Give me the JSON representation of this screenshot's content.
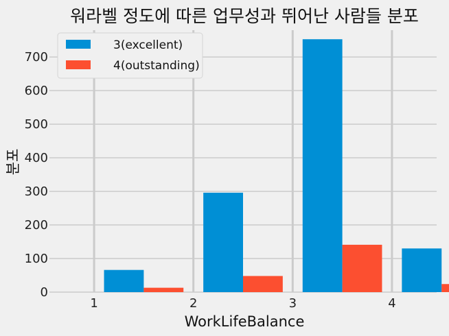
{
  "chart_data": {
    "type": "bar",
    "title": "워라벨 정도에 따른 업무성과 뛰어난 사람들 분포",
    "xlabel": "WorkLifeBalance",
    "ylabel": "분포",
    "x_ticks": [
      "1",
      "2",
      "3",
      "4"
    ],
    "x_range": [
      1,
      4
    ],
    "ylim": [
      0,
      780
    ],
    "y_ticks": [
      "0",
      "100",
      "200",
      "300",
      "400",
      "500",
      "600",
      "700"
    ],
    "grid": true,
    "legend_position": "top-left",
    "bins": [
      {
        "start": 1,
        "end": 2
      },
      {
        "start": 2,
        "end": 3
      },
      {
        "start": 3,
        "end": 4
      },
      {
        "start": 4,
        "end": 5
      }
    ],
    "series": [
      {
        "name": "3(excellent)",
        "color": "#008fd5",
        "values": [
          66,
          296,
          753,
          130
        ]
      },
      {
        "name": "4(outstanding)",
        "color": "#fc4f30",
        "values": [
          13,
          48,
          141,
          24
        ]
      }
    ]
  }
}
